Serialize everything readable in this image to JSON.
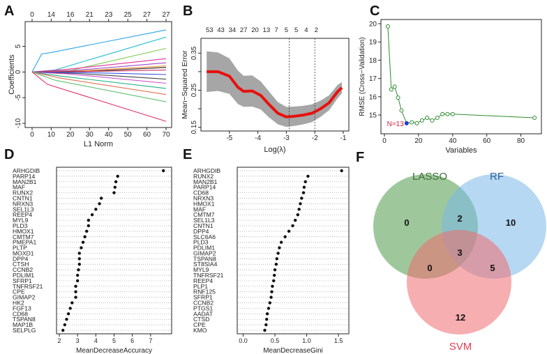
{
  "panel_letters": [
    "A",
    "B",
    "C",
    "D",
    "E",
    "F"
  ],
  "chart_data": [
    {
      "panel": "A",
      "type": "line",
      "title": "",
      "xlabel": "L1 Norm",
      "ylabel": "Coefficients",
      "xlim": [
        0,
        70
      ],
      "ylim": [
        -10,
        9
      ],
      "x_ticks": [
        0,
        10,
        20,
        30,
        40,
        50,
        60,
        70
      ],
      "y_ticks": [
        -10,
        -5,
        0,
        5
      ],
      "top_ticks_x": [
        0,
        10,
        20,
        30,
        40,
        50,
        60,
        70
      ],
      "top_ticks_labels": [
        "0",
        "14",
        "16",
        "21",
        "23",
        "25",
        "27",
        "27"
      ],
      "series": [
        {
          "name": "path1",
          "color": "#29a3e8",
          "x": [
            0,
            5,
            10,
            70
          ],
          "values": [
            0,
            3.5,
            3.8,
            8.2
          ]
        },
        {
          "name": "path2",
          "color": "#2bbfd0",
          "x": [
            0,
            12,
            70
          ],
          "values": [
            0,
            0.4,
            6.8
          ]
        },
        {
          "name": "path3",
          "color": "#7ec94a",
          "x": [
            0,
            20,
            70
          ],
          "values": [
            0,
            0.3,
            4.6
          ]
        },
        {
          "name": "path4",
          "color": "#e0309a",
          "x": [
            0,
            18,
            70
          ],
          "values": [
            0,
            0.5,
            2.6
          ]
        },
        {
          "name": "path5",
          "color": "#9a40c8",
          "x": [
            0,
            22,
            70
          ],
          "values": [
            0,
            0.3,
            1.8
          ]
        },
        {
          "name": "path6",
          "color": "#f08a20",
          "x": [
            0,
            25,
            70
          ],
          "values": [
            0,
            0.2,
            1.2
          ]
        },
        {
          "name": "path7",
          "color": "#1a1a1a",
          "x": [
            0,
            28,
            70
          ],
          "values": [
            0,
            0.1,
            0.9
          ]
        },
        {
          "name": "path8",
          "color": "#d03060",
          "x": [
            0,
            30,
            70
          ],
          "values": [
            0,
            0.1,
            0.4
          ]
        },
        {
          "name": "path9",
          "color": "#3050e0",
          "x": [
            0,
            26,
            70
          ],
          "values": [
            0,
            -0.1,
            -0.5
          ]
        },
        {
          "name": "path10",
          "color": "#444444",
          "x": [
            0,
            24,
            70
          ],
          "values": [
            0,
            -0.3,
            -1.4
          ]
        },
        {
          "name": "path11",
          "color": "#c84fd0",
          "x": [
            0,
            20,
            70
          ],
          "values": [
            0,
            -0.4,
            -2.2
          ]
        },
        {
          "name": "path12",
          "color": "#20b080",
          "x": [
            0,
            15,
            70
          ],
          "values": [
            0,
            -0.8,
            -3.2
          ]
        },
        {
          "name": "path13",
          "color": "#e07050",
          "x": [
            0,
            15,
            70
          ],
          "values": [
            0,
            -1.2,
            -4.4
          ]
        },
        {
          "name": "path14",
          "color": "#60c070",
          "x": [
            0,
            12,
            70
          ],
          "values": [
            0,
            -1.6,
            -5.8
          ]
        },
        {
          "name": "path15",
          "color": "#e03070",
          "x": [
            0,
            8,
            70
          ],
          "values": [
            0,
            -2.4,
            -9.6
          ]
        }
      ]
    },
    {
      "panel": "B",
      "type": "line",
      "title": "",
      "xlabel": "Log(λ)",
      "ylabel": "Mean−Squared Error",
      "xlim": [
        -6,
        -1
      ],
      "ylim": [
        0.14,
        0.39
      ],
      "x_ticks": [
        -5,
        -4,
        -3,
        -2,
        -1
      ],
      "y_ticks": [
        0.15,
        0.2,
        0.25,
        0.3,
        0.35
      ],
      "y_tick_labels": [
        "0.15",
        "",
        "0.25",
        "",
        "0.35"
      ],
      "top_ticks_x": [
        -5.7,
        -5.3,
        -4.9,
        -4.5,
        -4.1,
        -3.7,
        -3.35,
        -3.0,
        -2.65,
        -2.3,
        -1.95
      ],
      "top_ticks_labels": [
        "53",
        "43",
        "34",
        "27",
        "20",
        "13",
        "7",
        "5",
        "5",
        "4",
        "2"
      ],
      "vlines": [
        -2.9,
        -2.0
      ],
      "x": [
        -5.8,
        -5.4,
        -5.0,
        -4.7,
        -4.5,
        -4.2,
        -3.9,
        -3.6,
        -3.3,
        -3.0,
        -2.7,
        -2.4,
        -2.1,
        -1.8,
        -1.5,
        -1.2,
        -1.05
      ],
      "values": [
        0.3,
        0.3,
        0.288,
        0.258,
        0.247,
        0.248,
        0.236,
        0.211,
        0.188,
        0.178,
        0.18,
        0.183,
        0.188,
        0.2,
        0.216,
        0.246,
        0.257
      ],
      "band_half_width": [
        0.055,
        0.052,
        0.048,
        0.045,
        0.042,
        0.042,
        0.038,
        0.035,
        0.03,
        0.027,
        0.026,
        0.025,
        0.024,
        0.022,
        0.02,
        0.018,
        0.015
      ],
      "line_color": "#e8100c",
      "band_color": "#a6a6a6"
    },
    {
      "panel": "C",
      "type": "line",
      "title": "",
      "xlabel": "Variables",
      "ylabel": "RMSE (Cross−Validation)",
      "xlim": [
        0,
        90
      ],
      "ylim": [
        14.2,
        20.0
      ],
      "x_ticks": [
        0,
        20,
        40,
        60,
        80
      ],
      "y_ticks": [
        15,
        16,
        17,
        18,
        19,
        20
      ],
      "x": [
        2,
        4,
        6,
        8,
        10,
        13,
        16,
        19,
        22,
        25,
        28,
        31,
        34,
        37,
        40,
        88
      ],
      "values": [
        19.85,
        16.4,
        16.55,
        15.95,
        15.25,
        14.55,
        14.6,
        14.55,
        14.7,
        14.85,
        14.7,
        14.85,
        15.05,
        15.05,
        15.05,
        14.85
      ],
      "highlight_index": 5,
      "annotation": "N=13",
      "line_color": "#2e8b2e",
      "highlight_color": "#1f3ccc",
      "annotation_color": "#d0253a"
    },
    {
      "panel": "D",
      "type": "scatter",
      "title": "",
      "xlabel": "MeanDecreaseAccuracy",
      "ylabel": "",
      "xlim": [
        2,
        8
      ],
      "x_ticks": [
        2,
        3,
        4,
        5,
        6,
        7
      ],
      "categories": [
        "ARHGDIB",
        "PARP14",
        "MAN2B1",
        "MAF",
        "RUNX2",
        "CNTN1",
        "NRXN3",
        "SEL1L3",
        "REEP4",
        "MYL9",
        "PLD3",
        "HMOX1",
        "CMTM7",
        "PMEPA1",
        "PLTP",
        "MOXD1",
        "DPP4",
        "CTSH",
        "CCNB2",
        "PDLIM1",
        "SFRP1",
        "TNFRSF21",
        "CPE",
        "GIMAP2",
        "HK2",
        "FGF13",
        "CD68",
        "TSPAN8",
        "MAP1B",
        "SELPLG"
      ],
      "values": [
        7.7,
        5.2,
        5.1,
        5.05,
        5.0,
        4.3,
        4.2,
        4.0,
        3.8,
        3.6,
        3.6,
        3.5,
        3.4,
        3.3,
        3.2,
        3.1,
        3.1,
        3.1,
        3.05,
        3.0,
        3.0,
        2.9,
        2.9,
        2.9,
        2.7,
        2.6,
        2.5,
        2.4,
        2.3,
        2.2
      ]
    },
    {
      "panel": "E",
      "type": "scatter",
      "title": "",
      "xlabel": "MeanDecreaseGini",
      "ylabel": "",
      "xlim": [
        -0.05,
        1.62
      ],
      "x_ticks": [
        0.0,
        0.5,
        1.0,
        1.5
      ],
      "x_tick_labels": [
        "0.0",
        "0.5",
        "1.0",
        "1.5"
      ],
      "categories": [
        "ARHGDIB",
        "RUNX2",
        "MAN2B1",
        "PARP14",
        "CD68",
        "NRXN3",
        "HMOX1",
        "MAF",
        "CMTM7",
        "SEL1L3",
        "CNTN1",
        "DPP4",
        "SLC6A6",
        "PLD3",
        "PDLIM1",
        "GIMAP2",
        "TSPAN8",
        "ST8SIA4",
        "MYL9",
        "TNFRSF21",
        "REEP4",
        "PLP1",
        "RNF125",
        "SFRP1",
        "CCNB2",
        "PTGS1",
        "AADAT",
        "CTSD",
        "CPE",
        "KMO"
      ],
      "values": [
        1.55,
        1.02,
        0.98,
        0.96,
        0.95,
        0.92,
        0.9,
        0.88,
        0.86,
        0.82,
        0.78,
        0.72,
        0.66,
        0.6,
        0.57,
        0.55,
        0.53,
        0.52,
        0.5,
        0.49,
        0.48,
        0.46,
        0.45,
        0.44,
        0.42,
        0.4,
        0.38,
        0.37,
        0.36,
        0.34
      ]
    },
    {
      "panel": "F",
      "type": "venn",
      "sets": [
        {
          "name": "LASSO",
          "color": "#4f9a4b",
          "label_color": "#3d6b36"
        },
        {
          "name": "RF",
          "color": "#7ab8e8",
          "label_color": "#2f5f98"
        },
        {
          "name": "SVM",
          "color": "#f06b70",
          "label_color": "#e04050"
        }
      ],
      "regions": {
        "LASSO_only": 0,
        "RF_only": 10,
        "SVM_only": 12,
        "LASSO_RF": 2,
        "LASSO_SVM": 0,
        "RF_SVM": 5,
        "all": 3
      }
    }
  ]
}
